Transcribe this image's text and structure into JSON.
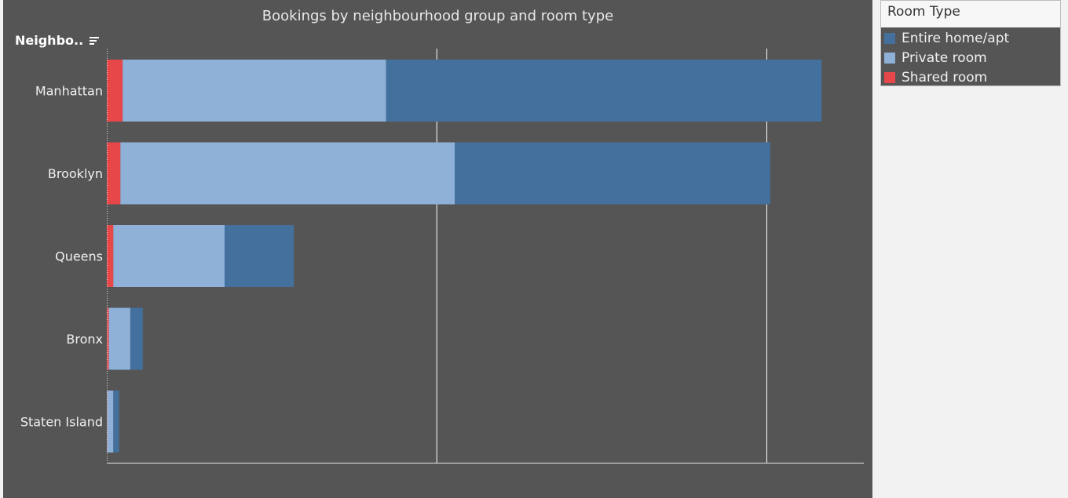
{
  "chart_data": {
    "type": "bar",
    "orientation": "horizontal",
    "stacked": true,
    "title": "Bookings by neighbourhood group and room type",
    "row_field_label": "Neighbo..",
    "categories": [
      "Manhattan",
      "Brooklyn",
      "Queens",
      "Bronx",
      "Staten Island"
    ],
    "series": [
      {
        "name": "Shared room",
        "color": "#e8474a",
        "values": [
          480,
          413,
          198,
          60,
          9
        ]
      },
      {
        "name": "Private room",
        "color": "#8fb1d8",
        "values": [
          7982,
          10132,
          3372,
          652,
          188
        ]
      },
      {
        "name": "Entire home/apt",
        "color": "#44709d",
        "values": [
          13199,
          9559,
          2096,
          379,
          176
        ]
      }
    ],
    "xlim": [
      0,
      22750
    ],
    "gridlines": [
      10000,
      20000
    ],
    "axis_tick_labels_shown": false
  },
  "legend": {
    "title": "Room Type",
    "items": [
      {
        "label": "Entire home/apt",
        "color": "#44709d"
      },
      {
        "label": "Private room",
        "color": "#8fb1d8"
      },
      {
        "label": "Shared room",
        "color": "#e8474a"
      }
    ]
  }
}
